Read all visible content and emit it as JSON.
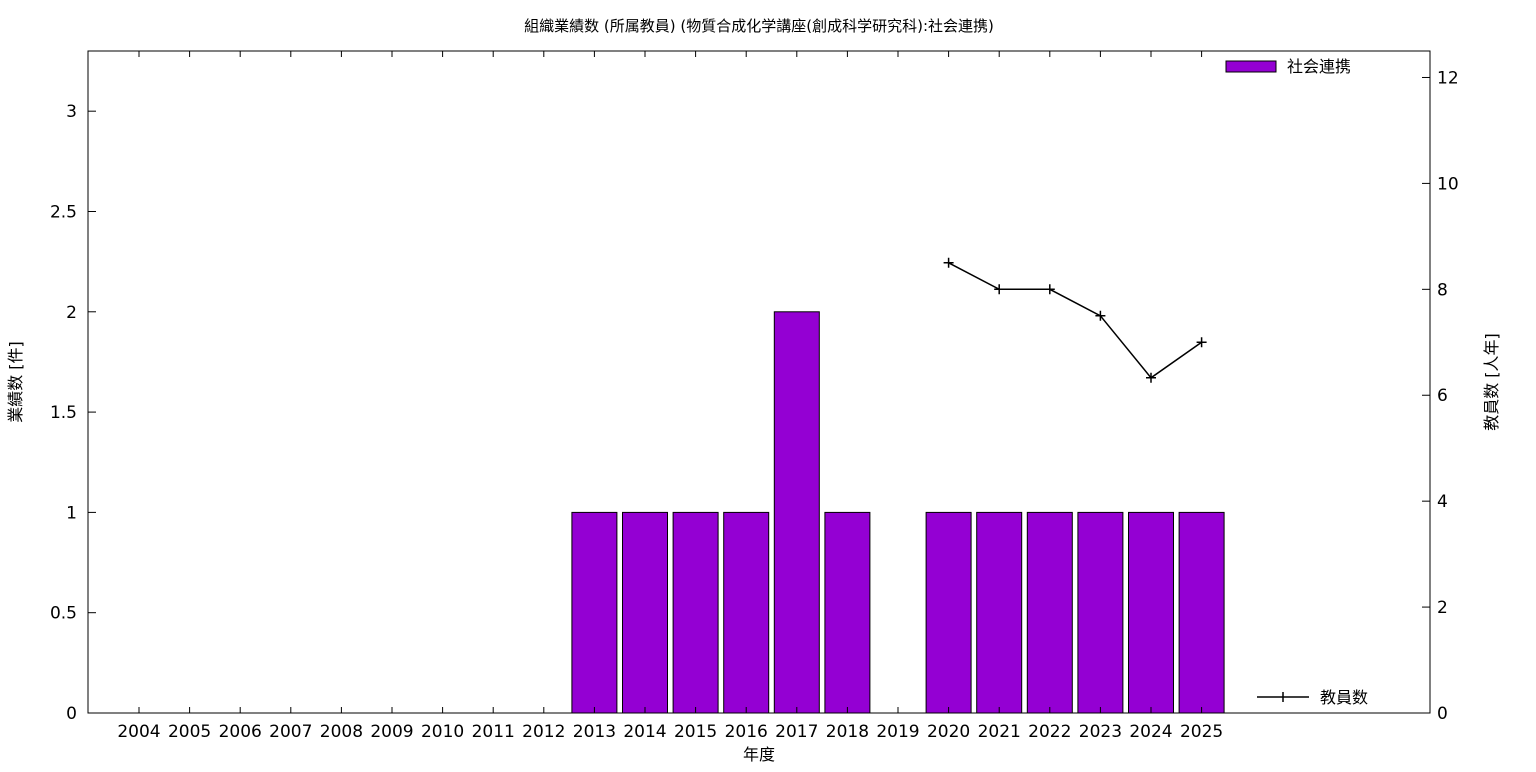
{
  "chart_data": {
    "type": "bar",
    "title": "組織業績数 (所属教員) (物質合成化学講座(創成科学研究科):社会連携)",
    "xlabel": "年度",
    "ylabel": "業績数 [件]",
    "y2label": "教員数 [人年]",
    "categories": [
      "2004",
      "2005",
      "2006",
      "2007",
      "2008",
      "2009",
      "2010",
      "2011",
      "2012",
      "2013",
      "2014",
      "2015",
      "2016",
      "2017",
      "2018",
      "2019",
      "2020",
      "2021",
      "2022",
      "2023",
      "2024",
      "2025"
    ],
    "series": [
      {
        "name": "社会連携",
        "type": "bar",
        "axis": "left",
        "color": "#9400d3",
        "values": [
          0,
          0,
          0,
          0,
          0,
          0,
          0,
          0,
          0,
          1,
          1,
          1,
          1,
          2,
          1,
          0,
          1,
          1,
          1,
          1,
          1,
          1
        ]
      },
      {
        "name": "教員数",
        "type": "line",
        "axis": "right",
        "color": "#000000",
        "values": [
          null,
          null,
          null,
          null,
          null,
          null,
          null,
          null,
          null,
          null,
          null,
          null,
          null,
          null,
          null,
          null,
          8.5,
          8,
          8,
          7.5,
          6.33,
          7
        ]
      }
    ],
    "ylim": [
      0,
      3.3
    ],
    "yticks": [
      0,
      0.5,
      1,
      1.5,
      2,
      2.5,
      3
    ],
    "ytick_labels": [
      "0",
      "0.5",
      "1",
      "1.5",
      "2",
      "2.5",
      "3"
    ],
    "y2lim": [
      0,
      12.5
    ],
    "y2ticks": [
      0,
      2,
      4,
      6,
      8,
      10,
      12
    ],
    "y2tick_labels": [
      "0",
      "2",
      "4",
      "6",
      "8",
      "10",
      "12"
    ],
    "grid": false,
    "legend": [
      "top-right",
      "bottom-right"
    ]
  }
}
